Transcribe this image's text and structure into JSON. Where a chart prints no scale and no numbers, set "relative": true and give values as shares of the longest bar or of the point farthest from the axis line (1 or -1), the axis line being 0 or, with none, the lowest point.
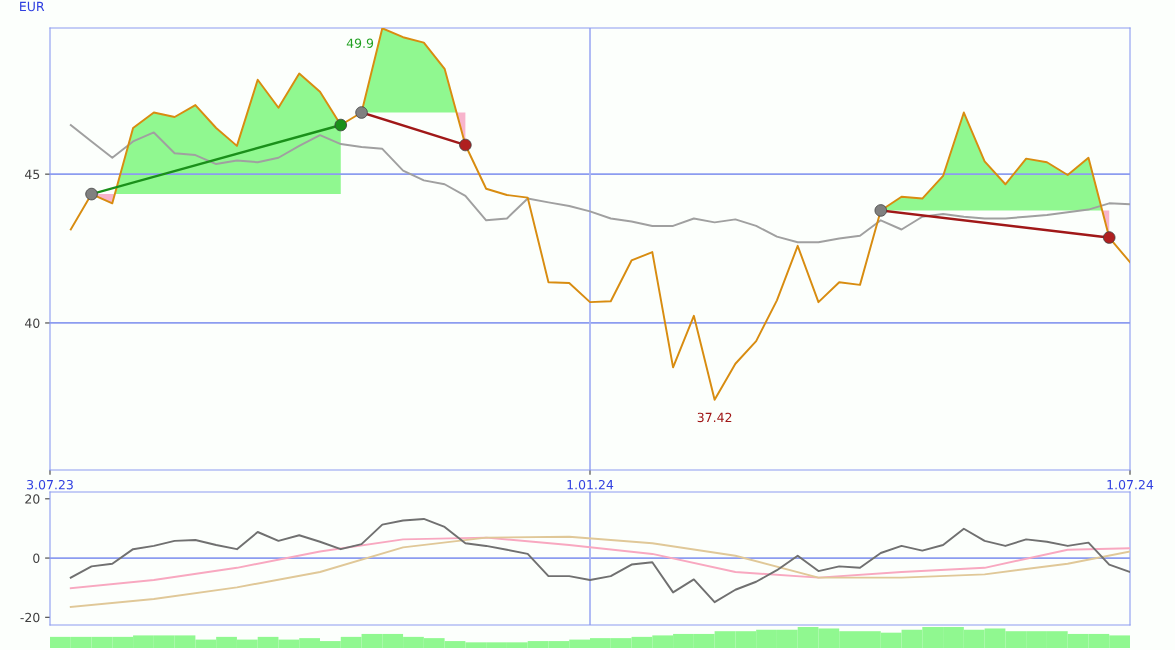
{
  "chart_data": [
    {
      "type": "line",
      "ylabel": "EUR",
      "x": [
        "2023-07-10",
        "2023-07-17",
        "2023-07-24",
        "2023-07-31",
        "2023-08-07",
        "2023-08-14",
        "2023-08-21",
        "2023-08-28",
        "2023-09-04",
        "2023-09-11",
        "2023-09-18",
        "2023-09-25",
        "2023-10-02",
        "2023-10-09",
        "2023-10-16",
        "2023-10-23",
        "2023-10-30",
        "2023-11-06",
        "2023-11-13",
        "2023-11-20",
        "2023-11-27",
        "2023-12-04",
        "2023-12-11",
        "2023-12-18",
        "2023-12-25",
        "2024-01-01",
        "2024-01-08",
        "2024-01-15",
        "2024-01-22",
        "2024-01-29",
        "2024-02-05",
        "2024-02-12",
        "2024-02-19",
        "2024-02-26",
        "2024-03-04",
        "2024-03-11",
        "2024-03-18",
        "2024-03-25",
        "2024-04-01",
        "2024-04-08",
        "2024-04-15",
        "2024-04-22",
        "2024-04-29",
        "2024-05-06",
        "2024-05-13",
        "2024-05-20",
        "2024-05-27",
        "2024-06-03",
        "2024-06-10",
        "2024-06-17",
        "2024-06-24",
        "2024-07-01"
      ],
      "xlim": [
        "2023-07-03",
        "2024-07-01"
      ],
      "xticks": [
        {
          "value": "2023-07-03",
          "label": "3.07.23"
        },
        {
          "value": "2024-01-01",
          "label": "1.01.24"
        },
        {
          "value": "2024-07-01",
          "label": "1.07.24"
        }
      ],
      "ylim": [
        35.06,
        49.91
      ],
      "yticks": [
        40,
        45
      ],
      "grid": false,
      "ref_lines": [
        {
          "axis": "y",
          "value": 45,
          "color": "#8c9cf0"
        },
        {
          "axis": "y",
          "value": 40,
          "color": "#8c9cf0"
        },
        {
          "axis": "x",
          "value": "2024-01-01",
          "color": "#a8b4f4"
        }
      ],
      "annotations": [
        {
          "text": "49.9",
          "x": "2023-10-23",
          "y": 49.9
        },
        {
          "text": "37.42",
          "x": "2024-02-12",
          "y": 37.42
        }
      ],
      "series": [
        {
          "type": "line",
          "color": "#a0a0a0",
          "values": [
            46.65,
            46.1,
            45.55,
            46.1,
            46.4,
            45.7,
            45.64,
            45.34,
            45.46,
            45.4,
            45.55,
            45.95,
            46.31,
            46.01,
            45.91,
            45.85,
            45.12,
            44.79,
            44.66,
            44.27,
            43.45,
            43.51,
            44.18,
            44.05,
            43.93,
            43.75,
            43.51,
            43.41,
            43.26,
            43.26,
            43.51,
            43.38,
            43.48,
            43.26,
            42.9,
            42.71,
            42.71,
            42.84,
            42.93,
            43.45,
            43.14,
            43.57,
            43.66,
            43.57,
            43.51,
            43.51,
            43.57,
            43.63,
            43.72,
            43.81,
            44.02,
            43.99
          ]
        },
        {
          "type": "line",
          "color": "#d88c10",
          "values": [
            43.14,
            44.33,
            44.02,
            46.55,
            47.07,
            46.92,
            47.32,
            46.55,
            45.95,
            48.17,
            47.23,
            48.38,
            47.77,
            46.65,
            47.07,
            49.9,
            49.6,
            49.42,
            48.54,
            45.98,
            44.51,
            44.3,
            44.21,
            41.37,
            41.34,
            40.7,
            40.73,
            42.1,
            42.38,
            38.51,
            40.24,
            37.42,
            38.63,
            39.39,
            40.76,
            42.59,
            40.7,
            41.37,
            41.28,
            43.78,
            44.24,
            44.18,
            44.94,
            47.07,
            45.43,
            44.66,
            45.52,
            45.4,
            44.97,
            45.55,
            42.87,
            42.04
          ]
        },
        {
          "type": "line",
          "x": [
            "2023-07-17",
            "2023-10-09"
          ],
          "values": [
            44.33,
            46.65
          ],
          "color": "#1a901a",
          "marker": "circle",
          "colors": [
            "#808080",
            "#1a901a"
          ]
        },
        {
          "type": "line",
          "x": [
            "2023-10-16",
            "2023-11-20"
          ],
          "values": [
            47.07,
            45.98
          ],
          "color": "#a01818",
          "marker": "circle",
          "colors": [
            "#808080",
            "#b02020"
          ]
        },
        {
          "type": "line",
          "x": [
            "2024-04-08",
            "2024-06-24"
          ],
          "values": [
            43.78,
            42.87
          ],
          "color": "#a01818",
          "marker": "circle",
          "colors": [
            "#808080",
            "#b02020"
          ]
        }
      ]
    },
    {
      "type": "line",
      "x": [
        "2023-07-10",
        "2023-07-17",
        "2023-07-24",
        "2023-07-31",
        "2023-08-07",
        "2023-08-14",
        "2023-08-21",
        "2023-08-28",
        "2023-09-04",
        "2023-09-11",
        "2023-09-18",
        "2023-09-25",
        "2023-10-02",
        "2023-10-09",
        "2023-10-16",
        "2023-10-23",
        "2023-10-30",
        "2023-11-06",
        "2023-11-13",
        "2023-11-20",
        "2023-11-27",
        "2023-12-04",
        "2023-12-11",
        "2023-12-18",
        "2023-12-25",
        "2024-01-01",
        "2024-01-08",
        "2024-01-15",
        "2024-01-22",
        "2024-01-29",
        "2024-02-05",
        "2024-02-12",
        "2024-02-19",
        "2024-02-26",
        "2024-03-04",
        "2024-03-11",
        "2024-03-18",
        "2024-03-25",
        "2024-04-01",
        "2024-04-08",
        "2024-04-15",
        "2024-04-22",
        "2024-04-29",
        "2024-05-06",
        "2024-05-13",
        "2024-05-20",
        "2024-05-27",
        "2024-06-03",
        "2024-06-10",
        "2024-06-17",
        "2024-06-24",
        "2024-07-01"
      ],
      "xlim": [
        "2023-07-03",
        "2024-07-01"
      ],
      "ylim": [
        -22.6,
        22.3
      ],
      "yticks": [
        -20,
        0,
        20
      ],
      "tick_labels": "y",
      "grid": false,
      "ref_lines": [
        {
          "axis": "y",
          "value": 0,
          "color": "#8c9cf0"
        },
        {
          "axis": "x",
          "value": "2024-01-01",
          "color": "#a8b4f4"
        }
      ],
      "series": [
        {
          "type": "line",
          "color": "#f8a8c0",
          "x": [
            "2023-07-10",
            "2023-08-07",
            "2023-09-04",
            "2023-10-02",
            "2023-10-30",
            "2023-11-27",
            "2023-12-25",
            "2024-01-22",
            "2024-02-19",
            "2024-03-18",
            "2024-04-15",
            "2024-05-13",
            "2024-06-10",
            "2024-07-01"
          ],
          "values": [
            -10.2,
            -7.4,
            -3.3,
            2.2,
            6.3,
            6.9,
            4.4,
            1.4,
            -4.7,
            -6.6,
            -4.7,
            -3.3,
            2.8,
            3.3
          ]
        },
        {
          "type": "line",
          "color": "#e0c898",
          "x": [
            "2023-07-10",
            "2023-08-07",
            "2023-09-04",
            "2023-10-02",
            "2023-10-30",
            "2023-11-27",
            "2023-12-25",
            "2024-01-22",
            "2024-02-19",
            "2024-03-18",
            "2024-04-15",
            "2024-05-13",
            "2024-06-10",
            "2024-07-01"
          ],
          "values": [
            -16.5,
            -13.8,
            -9.9,
            -4.7,
            3.6,
            6.9,
            7.2,
            5.0,
            0.8,
            -6.6,
            -6.6,
            -5.5,
            -1.9,
            2.2
          ]
        },
        {
          "type": "line",
          "color": "#707070",
          "values": [
            -6.6,
            -2.8,
            -1.9,
            3.0,
            4.1,
            5.8,
            6.1,
            4.4,
            3.0,
            8.8,
            5.8,
            7.7,
            5.5,
            3.0,
            4.7,
            11.3,
            12.7,
            13.2,
            10.5,
            5.0,
            4.1,
            2.8,
            1.4,
            -6.1,
            -6.1,
            -7.4,
            -6.1,
            -2.2,
            -1.4,
            -11.6,
            -7.2,
            -14.9,
            -10.7,
            -8.0,
            -4.1,
            0.8,
            -4.4,
            -2.8,
            -3.3,
            1.7,
            4.1,
            2.5,
            4.4,
            9.9,
            5.8,
            4.1,
            6.3,
            5.5,
            4.1,
            5.2,
            -2.2,
            -4.7
          ]
        }
      ]
    },
    {
      "type": "bar",
      "relative": true,
      "color": "#90f890",
      "categories": [
        null,
        null,
        null,
        null,
        null,
        null,
        null,
        null,
        null,
        null,
        null,
        null,
        null,
        null,
        null,
        null,
        null,
        null,
        null,
        null,
        null,
        null,
        null,
        null,
        null,
        null,
        null,
        null,
        null,
        null,
        null,
        null,
        null,
        null,
        null,
        null,
        null,
        null,
        null,
        null,
        null,
        null,
        null,
        null,
        null,
        null,
        null,
        null,
        null,
        null,
        null,
        null
      ],
      "values": [
        0.53,
        0.53,
        0.53,
        0.53,
        0.6,
        0.6,
        0.6,
        0.4,
        0.53,
        0.4,
        0.53,
        0.4,
        0.47,
        0.33,
        0.53,
        0.67,
        0.67,
        0.53,
        0.47,
        0.33,
        0.27,
        0.27,
        0.27,
        0.33,
        0.33,
        0.4,
        0.47,
        0.47,
        0.53,
        0.6,
        0.67,
        0.67,
        0.8,
        0.8,
        0.87,
        0.87,
        1,
        0.93,
        0.8,
        0.8,
        0.73,
        0.87,
        1,
        1,
        0.87,
        0.93,
        0.8,
        0.8,
        0.8,
        0.67,
        0.67,
        0.6
      ]
    }
  ]
}
